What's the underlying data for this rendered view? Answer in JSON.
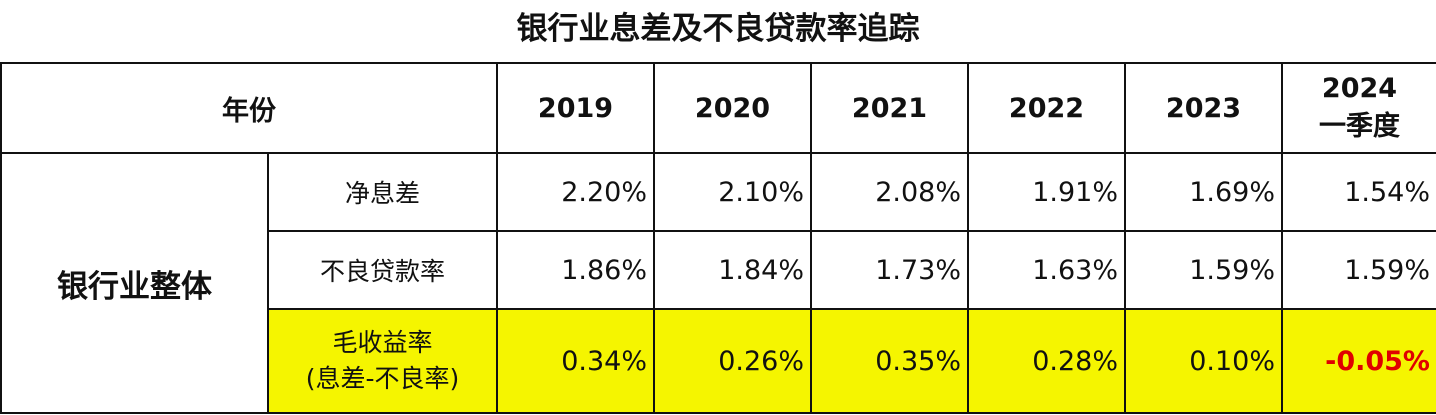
{
  "title": "银行业息差及不良贷款率追踪",
  "header": {
    "year_label": "年份",
    "years": [
      "2019",
      "2020",
      "2021",
      "2022",
      "2023"
    ],
    "year_2024_line1": "2024",
    "year_2024_line2": "一季度"
  },
  "group_label": "银行业整体",
  "rows": [
    {
      "label": "净息差",
      "values": [
        "2.20%",
        "2.10%",
        "2.08%",
        "1.91%",
        "1.69%",
        "1.54%"
      ]
    },
    {
      "label": "不良贷款率",
      "values": [
        "1.86%",
        "1.84%",
        "1.73%",
        "1.63%",
        "1.59%",
        "1.59%"
      ]
    },
    {
      "label_line1": "毛收益率",
      "label_line2": "(息差-不良率)",
      "values": [
        "0.34%",
        "0.26%",
        "0.35%",
        "0.28%",
        "0.10%",
        "-0.05%"
      ]
    }
  ],
  "colors": {
    "highlight": "#f5f500",
    "negative": "#e00000"
  }
}
